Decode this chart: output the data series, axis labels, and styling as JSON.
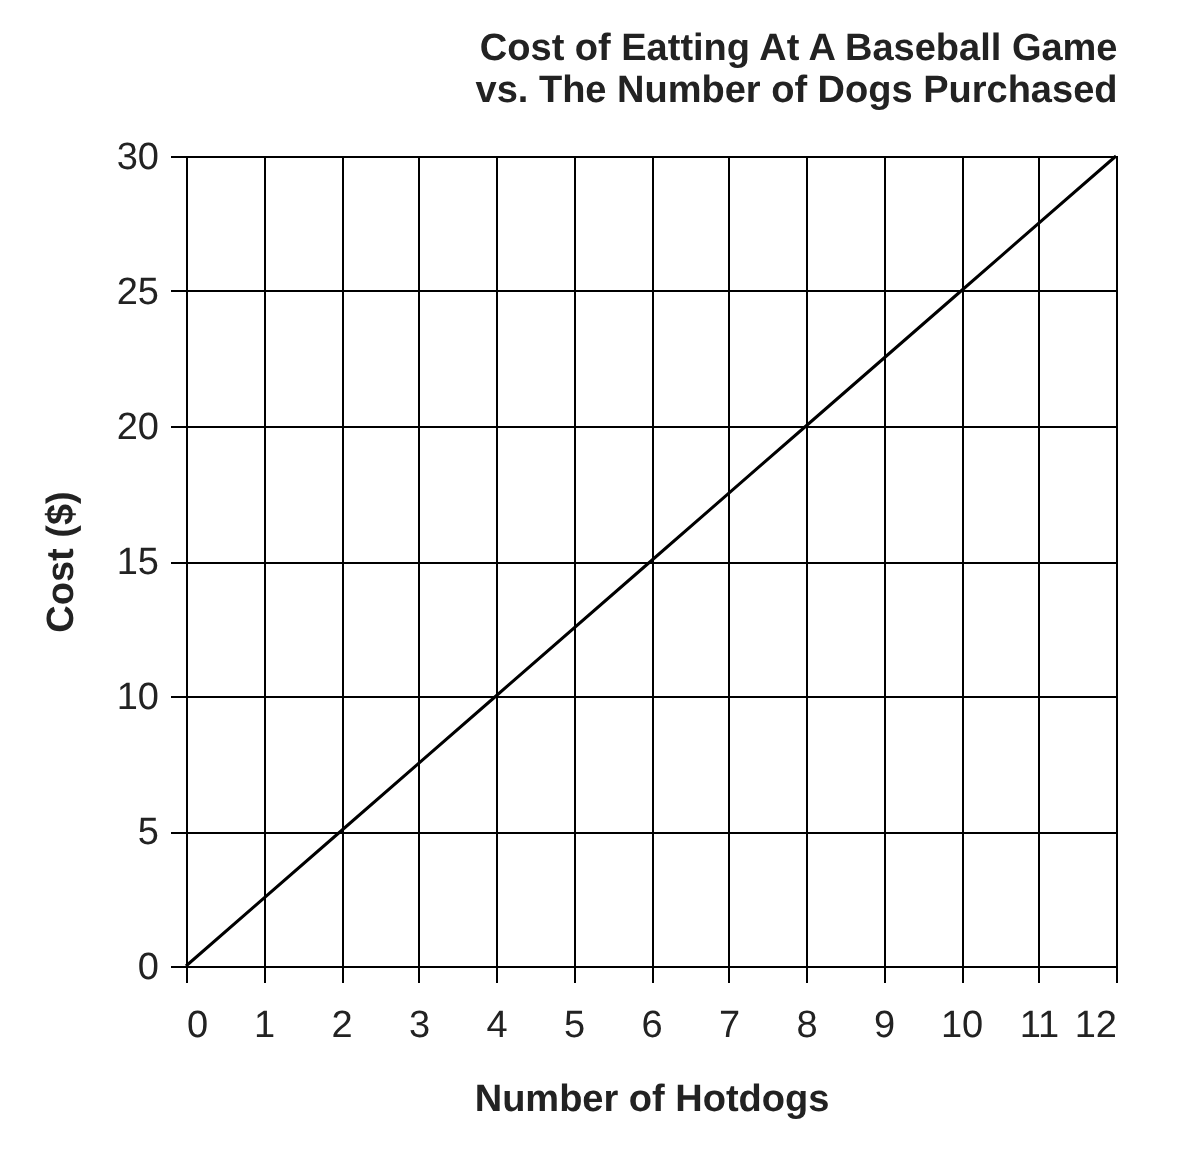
{
  "chart_data": {
    "type": "line",
    "title": [
      "Cost of Eatting At A Baseball Game",
      "vs. The Number of Dogs  Purchased"
    ],
    "xlabel": "Number of Hotdogs",
    "ylabel": "Cost ($)",
    "x": [
      0,
      2,
      4,
      6,
      8,
      10,
      12
    ],
    "series": [
      {
        "color": "#000000",
        "values": [
          0,
          5,
          10,
          15,
          20,
          25,
          30
        ]
      }
    ],
    "xlim": [
      0,
      12
    ],
    "xticks": [
      0,
      1,
      2,
      3,
      4,
      5,
      6,
      7,
      8,
      9,
      10,
      11,
      12
    ],
    "ylim": [
      0,
      30
    ],
    "yticks": [
      0,
      5,
      10,
      15,
      20,
      25,
      30
    ],
    "grid": true,
    "marker": "none",
    "line_style": "solid"
  }
}
